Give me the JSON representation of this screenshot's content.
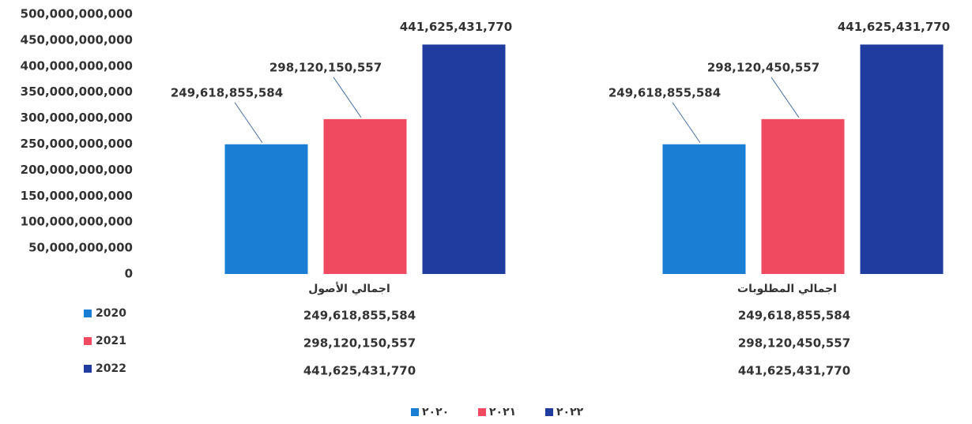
{
  "chart_data": {
    "type": "bar",
    "categories": [
      "اجمالي الأصول",
      "اجمالي المطلوبات"
    ],
    "series": [
      {
        "name": "2020",
        "color": "#1a7fd4",
        "values": [
          249618855584,
          249618855584
        ],
        "value_labels": [
          "249,618,855,584",
          "249,618,855,584"
        ]
      },
      {
        "name": "2021",
        "color": "#ef4a5f",
        "values": [
          298120150557,
          298120450557
        ],
        "value_labels": [
          "298,120,150,557",
          "298,120,450,557"
        ]
      },
      {
        "name": "2022",
        "color": "#1f3c9e",
        "values": [
          441625431770,
          441625431770
        ],
        "value_labels": [
          "441,625,431,770",
          "441,625,431,770"
        ]
      }
    ],
    "legend_labels": [
      "٢٠٢٠",
      "٢٠٢١",
      "٢٠٢٢"
    ],
    "ylim": [
      0,
      500000000000
    ],
    "yticks": [
      0,
      {
        "value": 50000000000,
        "label": "50,000,000,000"
      },
      {
        "value": 100000000000,
        "label": "100,000,000,000"
      },
      {
        "value": 150000000000,
        "label": "150,000,000,000"
      },
      {
        "value": 200000000000,
        "label": "200,000,000,000"
      },
      {
        "value": 250000000000,
        "label": "250,000,000,000"
      },
      {
        "value": 300000000000,
        "label": "300,000,000,000"
      },
      {
        "value": 350000000000,
        "label": "350,000,000,000"
      },
      {
        "value": 400000000000,
        "label": "400,000,000,000"
      },
      {
        "value": 450000000000,
        "label": "450,000,000,000"
      },
      {
        "value": 500000000000,
        "label": "500,000,000,000"
      }
    ],
    "grid": false
  }
}
